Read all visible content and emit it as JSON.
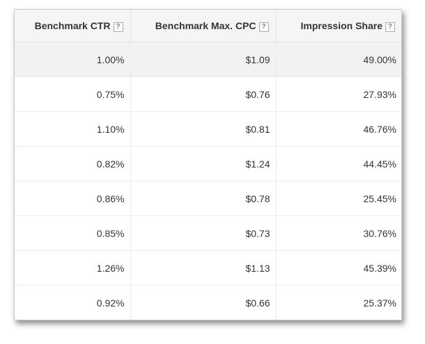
{
  "table": {
    "headers": [
      {
        "label": "Benchmark CTR",
        "help": "?"
      },
      {
        "label": "Benchmark Max. CPC",
        "help": "?"
      },
      {
        "label": "Impression Share",
        "help": "?"
      }
    ],
    "rows": [
      [
        "1.00%",
        "$1.09",
        "49.00%"
      ],
      [
        "0.75%",
        "$0.76",
        "27.93%"
      ],
      [
        "1.10%",
        "$0.81",
        "46.76%"
      ],
      [
        "0.82%",
        "$1.24",
        "44.45%"
      ],
      [
        "0.86%",
        "$0.78",
        "25.45%"
      ],
      [
        "0.85%",
        "$0.73",
        "30.76%"
      ],
      [
        "1.26%",
        "$1.13",
        "45.39%"
      ],
      [
        "0.92%",
        "$0.66",
        "25.37%"
      ]
    ]
  }
}
